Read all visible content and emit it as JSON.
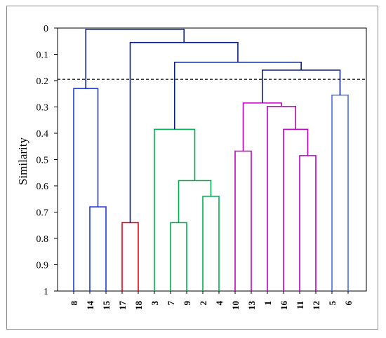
{
  "chart_data": {
    "type": "dendrogram",
    "ylabel": "Similarity",
    "xlabel": "",
    "title": "",
    "ylim": [
      0,
      1
    ],
    "yticks": [
      "0",
      "0.1",
      "0.2",
      "0.3",
      "0.4",
      "0.5",
      "0.6",
      "0.7",
      "0.8",
      "0.9",
      "1"
    ],
    "leaves": [
      "8",
      "14",
      "15",
      "17",
      "18",
      "3",
      "7",
      "9",
      "2",
      "4",
      "10",
      "13",
      "1",
      "16",
      "11",
      "12",
      "5",
      "6"
    ],
    "cut_line": 0.195,
    "merges": [
      {
        "id": "n_7_9",
        "children": [
          "L7",
          "L9"
        ],
        "height": 0.74,
        "color": "#00b050"
      },
      {
        "id": "n_17_18",
        "children": [
          "L17",
          "L18"
        ],
        "height": 0.74,
        "color": "#e8001c"
      },
      {
        "id": "n_14_15",
        "children": [
          "L14",
          "L15"
        ],
        "height": 0.68,
        "color": "#1f3ad6"
      },
      {
        "id": "n_2_4",
        "children": [
          "L2",
          "L4"
        ],
        "height": 0.64,
        "color": "#00b050"
      },
      {
        "id": "n_79_24",
        "children": [
          "n_7_9",
          "n_2_4"
        ],
        "height": 0.58,
        "color": "#00b050"
      },
      {
        "id": "n_11_12",
        "children": [
          "L11",
          "L12"
        ],
        "height": 0.485,
        "color": "#c000c0"
      },
      {
        "id": "n_10_13",
        "children": [
          "L10",
          "L13"
        ],
        "height": 0.468,
        "color": "#c000c0"
      },
      {
        "id": "n_3_g",
        "children": [
          "L3",
          "n_79_24"
        ],
        "height": 0.385,
        "color": "#00b050"
      },
      {
        "id": "n_16_g",
        "children": [
          "L16",
          "n_11_12"
        ],
        "height": 0.385,
        "color": "#c000c0"
      },
      {
        "id": "n_1_g",
        "children": [
          "L1",
          "n_16_g"
        ],
        "height": 0.298,
        "color": "#c000c0"
      },
      {
        "id": "n_m_g",
        "children": [
          "n_10_13",
          "n_1_g"
        ],
        "height": 0.285,
        "color": "#c000c0"
      },
      {
        "id": "n_5_6",
        "children": [
          "L5",
          "L6"
        ],
        "height": 0.255,
        "color": "#4a6ce0"
      },
      {
        "id": "n_8_g",
        "children": [
          "L8",
          "n_14_15"
        ],
        "height": 0.23,
        "color": "#1f3ad6"
      },
      {
        "id": "n_mg_56",
        "children": [
          "n_m_g",
          "n_5_6"
        ],
        "height": 0.16,
        "color": "#0a1f7a"
      },
      {
        "id": "n_g_mg",
        "children": [
          "n_3_g",
          "n_mg_56"
        ],
        "height": 0.13,
        "color": "#0a1f7a"
      },
      {
        "id": "n_17_all",
        "children": [
          "n_17_18",
          "n_g_mg"
        ],
        "height": 0.055,
        "color": "#0a1f7a"
      },
      {
        "id": "n_root",
        "children": [
          "n_8_g",
          "n_17_all"
        ],
        "height": 0.005,
        "color": "#0a1f7a"
      }
    ]
  }
}
